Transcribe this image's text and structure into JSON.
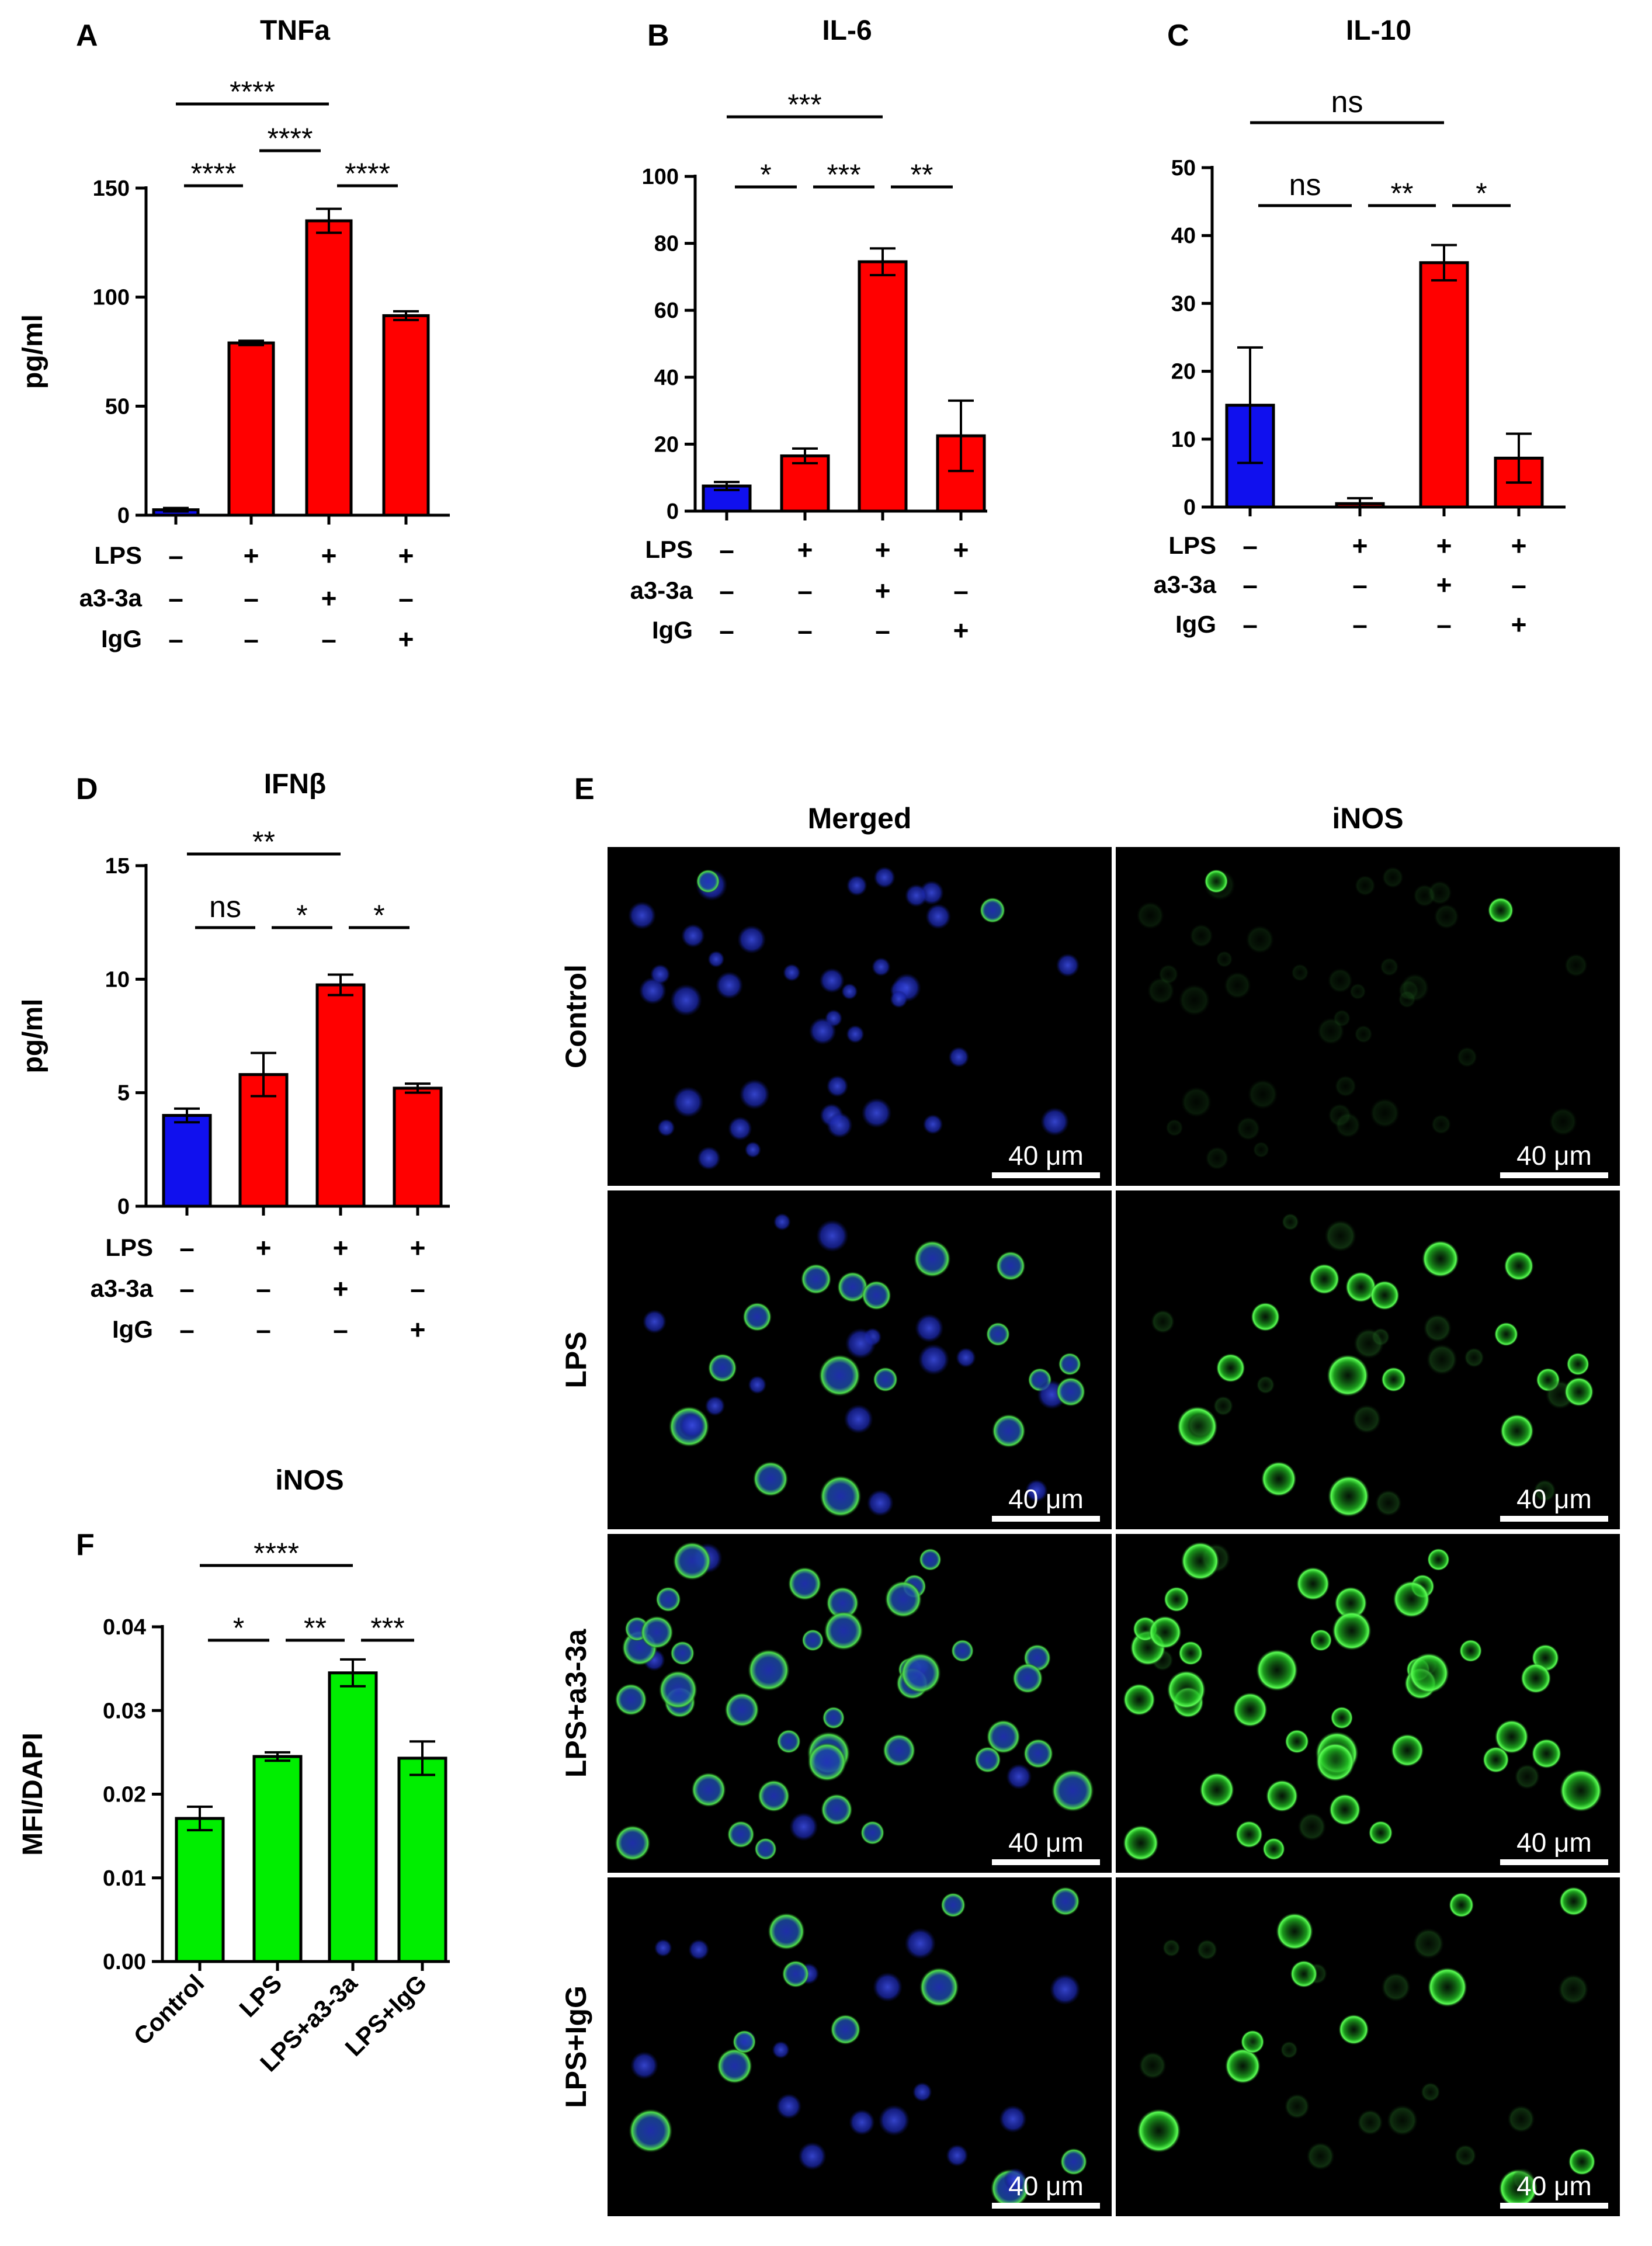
{
  "panels": {
    "A": "A",
    "B": "B",
    "C": "C",
    "D": "D",
    "E": "E",
    "F": "F"
  },
  "condition_rows": {
    "lps": "LPS",
    "a3": "a3-3a",
    "igg": "IgG",
    "plus": "+",
    "minus": "–"
  },
  "chart_data": [
    {
      "id": "A",
      "type": "bar",
      "title": "TNFa",
      "ylabel": "pg/ml",
      "ylim": [
        0,
        150
      ],
      "yticks": [
        0,
        50,
        100,
        150
      ],
      "categories": [
        "Control",
        "LPS",
        "LPS+a3-3a",
        "LPS+IgG"
      ],
      "values": [
        2.5,
        79,
        135,
        91.5
      ],
      "errors": [
        0.8,
        1.0,
        5.5,
        2.0
      ],
      "colors": [
        "#1010ee",
        "#ff0000",
        "#ff0000",
        "#ff0000"
      ],
      "conditions": {
        "LPS": [
          "–",
          "+",
          "+",
          "+"
        ],
        "a3-3a": [
          "–",
          "–",
          "+",
          "–"
        ],
        "IgG": [
          "–",
          "–",
          "–",
          "+"
        ]
      },
      "significance": [
        {
          "from": 0,
          "to": 1,
          "label": "****"
        },
        {
          "from": 1,
          "to": 2,
          "label": "****"
        },
        {
          "from": 2,
          "to": 3,
          "label": "****"
        },
        {
          "from": 0,
          "to": 2,
          "label": "****"
        }
      ]
    },
    {
      "id": "B",
      "type": "bar",
      "title": "IL-6",
      "ylabel": "",
      "ylim": [
        0,
        100
      ],
      "yticks": [
        0,
        20,
        40,
        60,
        80,
        100
      ],
      "categories": [
        "Control",
        "LPS",
        "LPS+a3-3a",
        "LPS+IgG"
      ],
      "values": [
        7.5,
        16.5,
        74.5,
        22.5
      ],
      "errors": [
        1.2,
        2.2,
        4.0,
        10.5
      ],
      "colors": [
        "#1010ee",
        "#ff0000",
        "#ff0000",
        "#ff0000"
      ],
      "conditions": {
        "LPS": [
          "–",
          "+",
          "+",
          "+"
        ],
        "a3-3a": [
          "–",
          "–",
          "+",
          "–"
        ],
        "IgG": [
          "–",
          "–",
          "–",
          "+"
        ]
      },
      "significance": [
        {
          "from": 0,
          "to": 1,
          "label": "*"
        },
        {
          "from": 1,
          "to": 2,
          "label": "***"
        },
        {
          "from": 2,
          "to": 3,
          "label": "**"
        },
        {
          "from": 0,
          "to": 2,
          "label": "***"
        }
      ]
    },
    {
      "id": "C",
      "type": "bar",
      "title": "IL-10",
      "ylabel": "",
      "ylim": [
        0,
        50
      ],
      "yticks": [
        0,
        10,
        20,
        30,
        40,
        50
      ],
      "categories": [
        "Control",
        "LPS",
        "LPS+a3-3a",
        "LPS+IgG"
      ],
      "values": [
        15,
        0.5,
        36,
        7.2
      ],
      "errors": [
        8.5,
        0.8,
        2.6,
        3.6
      ],
      "colors": [
        "#1010ee",
        "#ff0000",
        "#ff0000",
        "#ff0000"
      ],
      "conditions": {
        "LPS": [
          "–",
          "+",
          "+",
          "+"
        ],
        "a3-3a": [
          "–",
          "–",
          "+",
          "–"
        ],
        "IgG": [
          "–",
          "–",
          "–",
          "+"
        ]
      },
      "significance": [
        {
          "from": 0,
          "to": 1,
          "label": "ns"
        },
        {
          "from": 1,
          "to": 2,
          "label": "**"
        },
        {
          "from": 2,
          "to": 3,
          "label": "*"
        },
        {
          "from": 0,
          "to": 2,
          "label": "ns"
        }
      ]
    },
    {
      "id": "D",
      "type": "bar",
      "title": "IFNβ",
      "ylabel": "pg/ml",
      "ylim": [
        0,
        15
      ],
      "yticks": [
        0,
        5,
        10,
        15
      ],
      "categories": [
        "Control",
        "LPS",
        "LPS+a3-3a",
        "LPS+IgG"
      ],
      "values": [
        4.0,
        5.8,
        9.75,
        5.2
      ],
      "errors": [
        0.3,
        0.95,
        0.45,
        0.2
      ],
      "colors": [
        "#1010ee",
        "#ff0000",
        "#ff0000",
        "#ff0000"
      ],
      "conditions": {
        "LPS": [
          "–",
          "+",
          "+",
          "+"
        ],
        "a3-3a": [
          "–",
          "–",
          "+",
          "–"
        ],
        "IgG": [
          "–",
          "–",
          "–",
          "+"
        ]
      },
      "significance": [
        {
          "from": 0,
          "to": 1,
          "label": "ns"
        },
        {
          "from": 1,
          "to": 2,
          "label": "*"
        },
        {
          "from": 2,
          "to": 3,
          "label": "*"
        },
        {
          "from": 0,
          "to": 2,
          "label": "**"
        }
      ]
    },
    {
      "id": "F",
      "type": "bar",
      "title": "iNOS",
      "ylabel": "MFI/DAPI",
      "ylim": [
        0,
        0.04
      ],
      "yticks": [
        "0.00",
        "0.01",
        "0.02",
        "0.03",
        "0.04"
      ],
      "categories": [
        "Control",
        "LPS",
        "LPS+a3-3a",
        "LPS+IgG"
      ],
      "values": [
        0.0171,
        0.0245,
        0.0345,
        0.0243
      ],
      "errors": [
        0.0014,
        0.0005,
        0.0016,
        0.002
      ],
      "colors": [
        "#00ee00",
        "#00ee00",
        "#00ee00",
        "#00ee00"
      ],
      "significance": [
        {
          "from": 0,
          "to": 1,
          "label": "*"
        },
        {
          "from": 1,
          "to": 2,
          "label": "**"
        },
        {
          "from": 2,
          "to": 3,
          "label": "***"
        },
        {
          "from": 0,
          "to": 2,
          "label": "****"
        }
      ]
    }
  ],
  "micrographs": {
    "columns": [
      "Merged",
      "iNOS"
    ],
    "rows": [
      "Control",
      "LPS",
      "LPS+a3-3a",
      "LPS+IgG"
    ],
    "scale_bar": "40 μm"
  }
}
